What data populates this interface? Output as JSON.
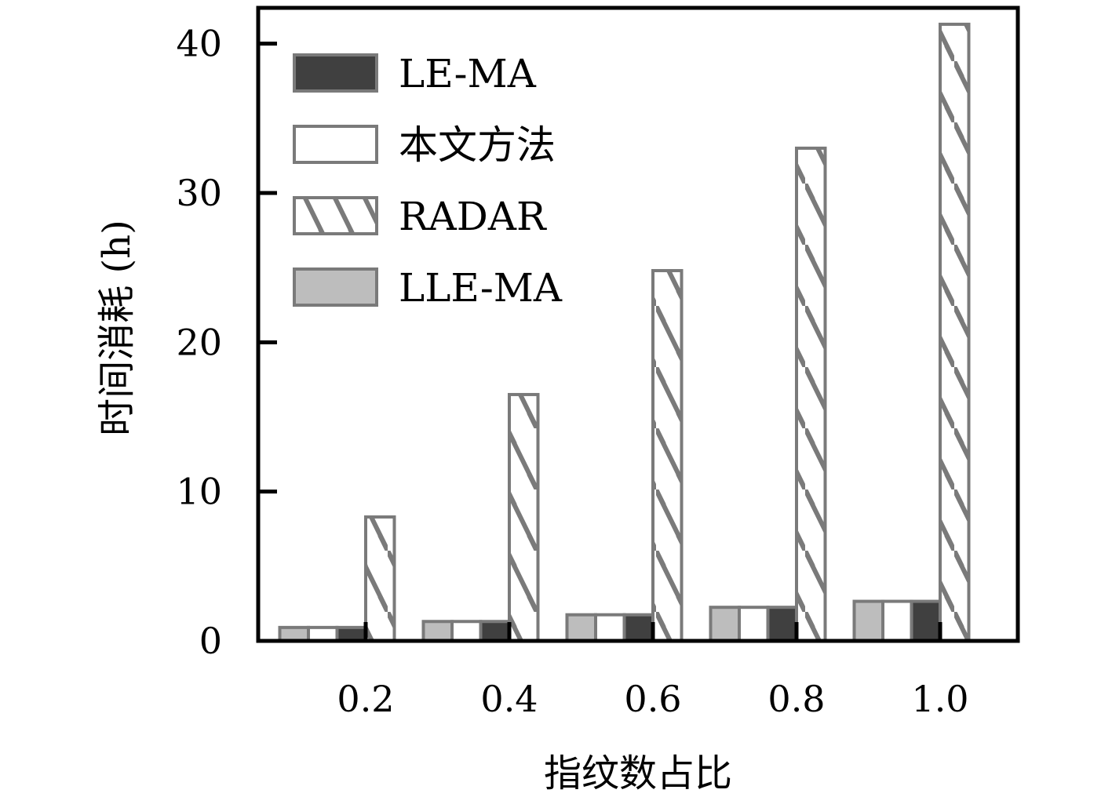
{
  "chart_data": {
    "type": "bar",
    "xlabel": "指纹数占比",
    "ylabel": "时间消耗 (h)",
    "categories": [
      "0.2",
      "0.4",
      "0.6",
      "0.8",
      "1.0"
    ],
    "yticks": [
      "0",
      "10",
      "20",
      "30",
      "40"
    ],
    "ylim": [
      0,
      42.4
    ],
    "grid": false,
    "legend_position": "top-left",
    "series": [
      {
        "name": "LLE-MA",
        "values": [
          0.9,
          1.3,
          1.75,
          2.25,
          2.65
        ],
        "fill": "#bdbdbd",
        "pattern": "solid"
      },
      {
        "name": "本文方法",
        "values": [
          0.9,
          1.3,
          1.75,
          2.25,
          2.65
        ],
        "fill": "#ffffff",
        "pattern": "solid"
      },
      {
        "name": "LE-MA",
        "values": [
          0.9,
          1.3,
          1.75,
          2.25,
          2.65
        ],
        "fill": "#404040",
        "pattern": "solid"
      },
      {
        "name": "RADAR",
        "values": [
          8.3,
          16.5,
          24.8,
          33.0,
          41.3
        ],
        "fill": "#ffffff",
        "pattern": "hatch"
      }
    ],
    "legend_order": [
      "LE-MA",
      "本文方法",
      "RADAR",
      "LLE-MA"
    ],
    "colors": {
      "axis": "#000000",
      "bar_edge": "#7a7a7a",
      "hatch": "#7a7a7a"
    }
  }
}
